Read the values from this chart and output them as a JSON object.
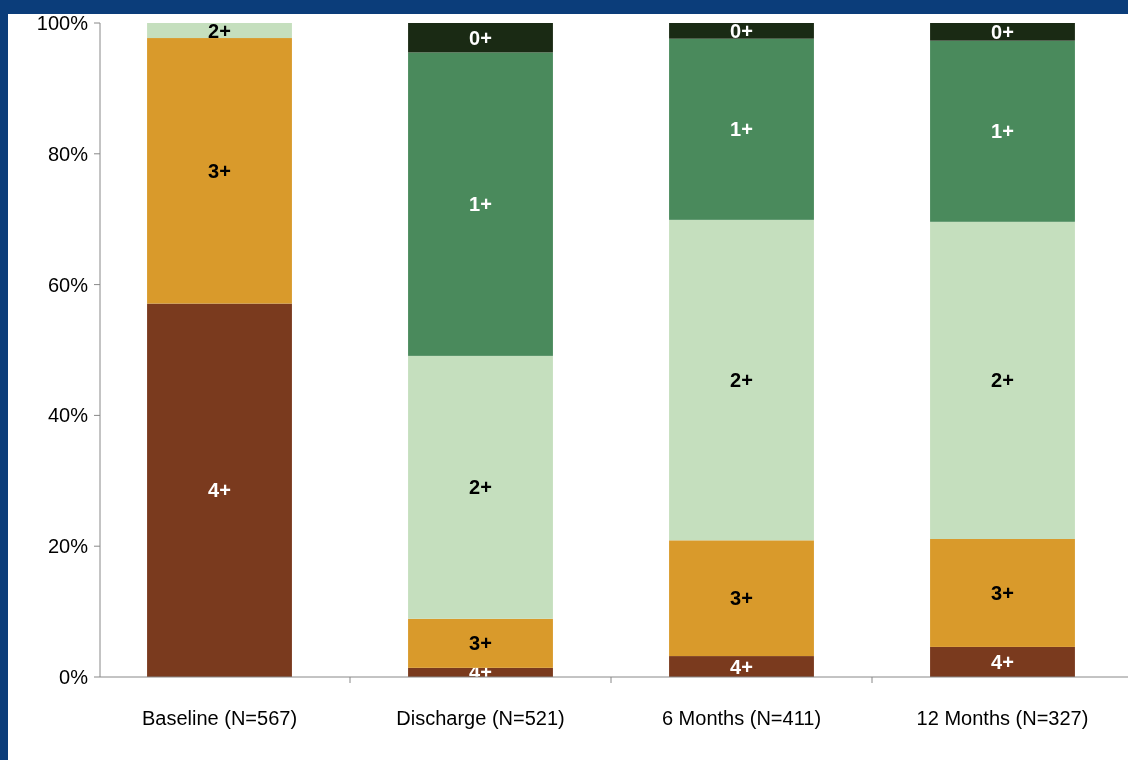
{
  "chart_data": {
    "type": "bar",
    "stacked": true,
    "categories": [
      "Baseline (N=567)",
      "Discharge (N=521)",
      "6 Months (N=411)",
      "12 Months (N=327)"
    ],
    "series": [
      {
        "name": "4+",
        "color": "#7a3a1e",
        "values": [
          57.1,
          1.4,
          3.2,
          4.6
        ]
      },
      {
        "name": "3+",
        "color": "#d99a2b",
        "values": [
          40.6,
          7.5,
          17.7,
          16.5
        ]
      },
      {
        "name": "2+",
        "color": "#c5dfbe",
        "values": [
          2.3,
          40.2,
          49.0,
          48.5
        ]
      },
      {
        "name": "1+",
        "color": "#4a8a5c",
        "values": [
          null,
          46.4,
          27.7,
          27.7
        ]
      },
      {
        "name": "0+",
        "color": "#1a2a14",
        "values": [
          null,
          4.5,
          2.4,
          2.7
        ]
      }
    ],
    "ylim": [
      0,
      100
    ],
    "yticks": [
      {
        "value": 0,
        "label": "0%"
      },
      {
        "value": 20,
        "label": "20%"
      },
      {
        "value": 40,
        "label": "40%"
      },
      {
        "value": 60,
        "label": "60%"
      },
      {
        "value": 80,
        "label": "80%"
      },
      {
        "value": 100,
        "label": "100%"
      }
    ],
    "grid": false,
    "legend": false
  }
}
